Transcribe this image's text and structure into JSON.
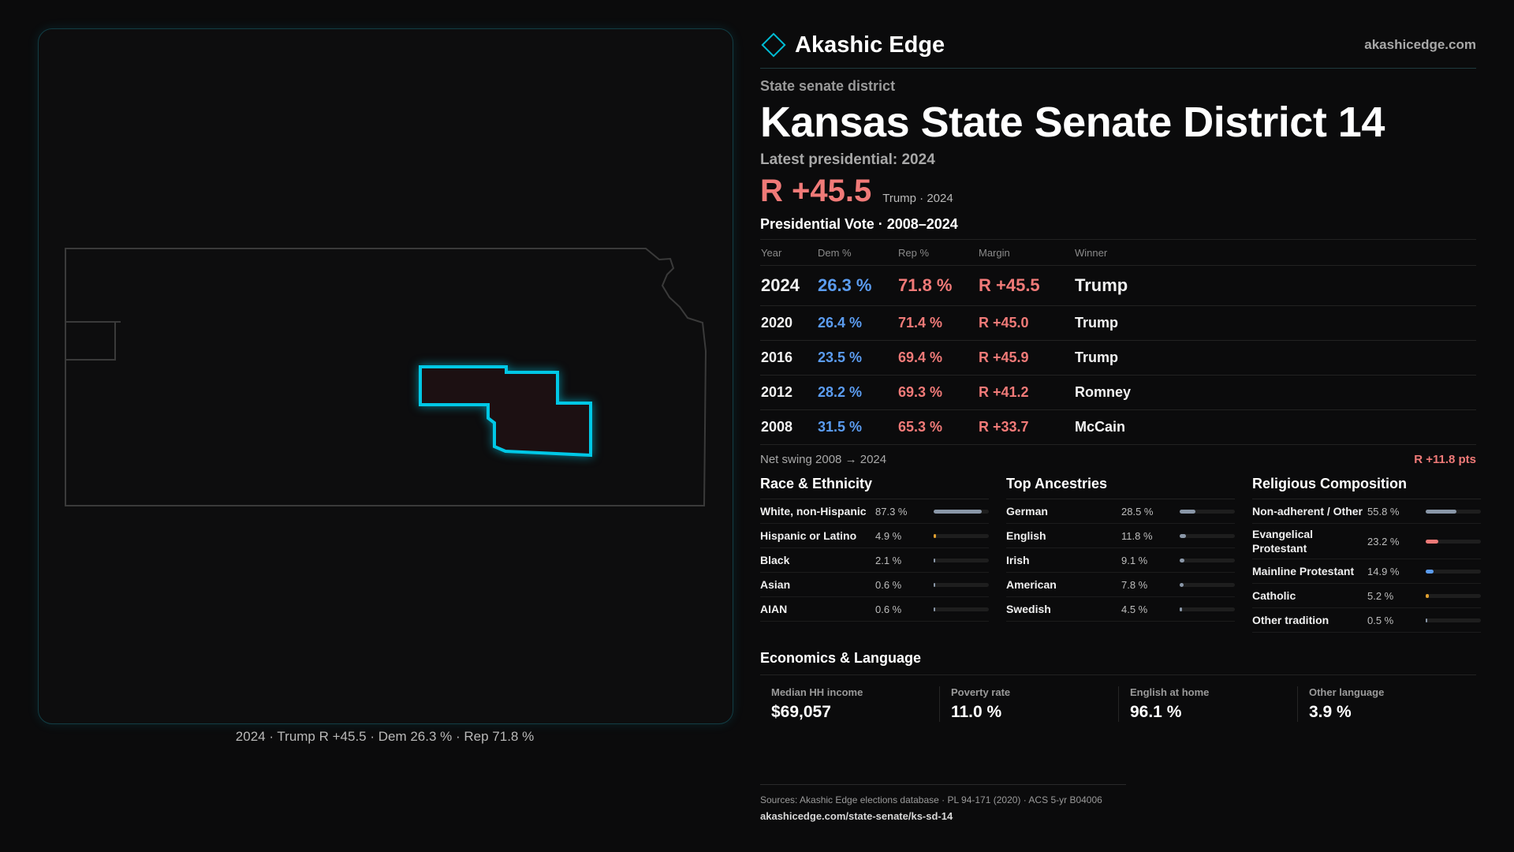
{
  "brand": {
    "name": "Akashic Edge",
    "url": "akashicedge.com"
  },
  "district": {
    "kind": "State senate district",
    "title": "Kansas State Senate District 14",
    "latest": "Latest presidential: 2024",
    "margin": "R +45.5",
    "margin_sub": "Trump · 2024"
  },
  "map": {
    "caption": "2024 · Trump R +45.5 · Dem 26.3 % · Rep 71.8 %",
    "highlight_color": "#00c8e6"
  },
  "presidential": {
    "heading": "Presidential Vote · 2008–2024",
    "columns": [
      "Year",
      "Dem %",
      "Rep %",
      "Margin",
      "Winner"
    ],
    "rows": [
      {
        "year": "2024",
        "dem": "26.3 %",
        "rep": "71.8 %",
        "margin": "R +45.5",
        "winner": "Trump"
      },
      {
        "year": "2020",
        "dem": "26.4 %",
        "rep": "71.4 %",
        "margin": "R +45.0",
        "winner": "Trump"
      },
      {
        "year": "2016",
        "dem": "23.5 %",
        "rep": "69.4 %",
        "margin": "R +45.9",
        "winner": "Trump"
      },
      {
        "year": "2012",
        "dem": "28.2 %",
        "rep": "69.3 %",
        "margin": "R +41.2",
        "winner": "Romney"
      },
      {
        "year": "2008",
        "dem": "31.5 %",
        "rep": "65.3 %",
        "margin": "R +33.7",
        "winner": "McCain"
      }
    ],
    "swing_label": "Net swing 2008 → 2024",
    "swing_value": "R +11.8 pts"
  },
  "race": {
    "heading": "Race & Ethnicity",
    "items": [
      {
        "label": "White, non-Hispanic",
        "value": "87.3 %",
        "pct": 87.3,
        "color": "#8a97a8"
      },
      {
        "label": "Hispanic or Latino",
        "value": "4.9 %",
        "pct": 4.9,
        "color": "#e0a030"
      },
      {
        "label": "Black",
        "value": "2.1 %",
        "pct": 2.1,
        "color": "#8a97a8"
      },
      {
        "label": "Asian",
        "value": "0.6 %",
        "pct": 0.6,
        "color": "#8a97a8"
      },
      {
        "label": "AIAN",
        "value": "0.6 %",
        "pct": 0.6,
        "color": "#8a97a8"
      }
    ]
  },
  "ancestry": {
    "heading": "Top Ancestries",
    "items": [
      {
        "label": "German",
        "value": "28.5 %",
        "pct": 28.5,
        "color": "#8a97a8"
      },
      {
        "label": "English",
        "value": "11.8 %",
        "pct": 11.8,
        "color": "#8a97a8"
      },
      {
        "label": "Irish",
        "value": "9.1 %",
        "pct": 9.1,
        "color": "#8a97a8"
      },
      {
        "label": "American",
        "value": "7.8 %",
        "pct": 7.8,
        "color": "#8a97a8"
      },
      {
        "label": "Swedish",
        "value": "4.5 %",
        "pct": 4.5,
        "color": "#8a97a8"
      }
    ]
  },
  "religion": {
    "heading": "Religious Composition",
    "items": [
      {
        "label": "Non-adherent / Other",
        "value": "55.8 %",
        "pct": 55.8,
        "color": "#8a97a8"
      },
      {
        "label": "Evangelical Protestant",
        "value": "23.2 %",
        "pct": 23.2,
        "color": "#f07a78"
      },
      {
        "label": "Mainline Protestant",
        "value": "14.9 %",
        "pct": 14.9,
        "color": "#5b9cf0"
      },
      {
        "label": "Catholic",
        "value": "5.2 %",
        "pct": 5.2,
        "color": "#e0a030"
      },
      {
        "label": "Other tradition",
        "value": "0.5 %",
        "pct": 0.5,
        "color": "#8a97a8"
      }
    ]
  },
  "economics": {
    "heading": "Economics & Language",
    "items": [
      {
        "label": "Median HH income",
        "value": "$69,057"
      },
      {
        "label": "Poverty rate",
        "value": "11.0 %"
      },
      {
        "label": "English at home",
        "value": "96.1 %"
      },
      {
        "label": "Other language",
        "value": "3.9 %"
      }
    ]
  },
  "sources": {
    "line1": "Sources: Akashic Edge elections database · PL 94-171 (2020) · ACS 5-yr B04006",
    "line2": "akashicedge.com/state-senate/ks-sd-14"
  }
}
